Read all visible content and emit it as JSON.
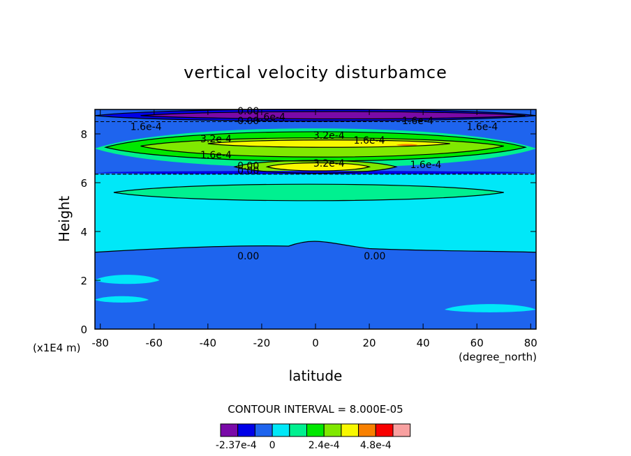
{
  "chart_data": {
    "type": "heatmap",
    "title": "vertical velocity disturbamce",
    "xlabel": "latitude",
    "ylabel": "Height",
    "x_units": "(degree_north)",
    "y_units": "(x1E4 m)",
    "xlim": [
      -82,
      82
    ],
    "ylim": [
      0,
      9
    ],
    "x_ticks": [
      "-80",
      "-60",
      "-40",
      "-20",
      "0",
      "20",
      "40",
      "60",
      "80"
    ],
    "y_ticks": [
      "0",
      "2",
      "4",
      "6",
      "8"
    ],
    "contour_interval_text": "CONTOUR INTERVAL = 8.000E-05",
    "legend": {
      "colors": [
        "#7a0aa8",
        "#0000e8",
        "#1e64ee",
        "#00e8f8",
        "#00f090",
        "#00e800",
        "#80e800",
        "#f8f800",
        "#f88000",
        "#f80000",
        "#f8a0a0"
      ],
      "labels": [
        "-2.37e-4",
        "0",
        "2.4e-4",
        "4.8e-4"
      ]
    },
    "contour_labels": [
      {
        "text": "0.00",
        "x": -25,
        "y": 8.95
      },
      {
        "text": "1.6e-4",
        "x": -17,
        "y": 8.7
      },
      {
        "text": "0.00",
        "x": -25,
        "y": 8.55
      },
      {
        "text": "1.6e-4",
        "x": 38,
        "y": 8.55
      },
      {
        "text": "1.6e-4",
        "x": -63,
        "y": 8.3
      },
      {
        "text": "1.6e-4",
        "x": 62,
        "y": 8.3
      },
      {
        "text": "3.2e-4",
        "x": -37,
        "y": 7.8
      },
      {
        "text": "3.2e-4",
        "x": 5,
        "y": 7.95
      },
      {
        "text": "1.6e-4",
        "x": 20,
        "y": 7.75
      },
      {
        "text": "1.6e-4",
        "x": -37,
        "y": 7.15
      },
      {
        "text": "3.2e-4",
        "x": 5,
        "y": 6.8
      },
      {
        "text": "1.6e-4",
        "x": 41,
        "y": 6.75
      },
      {
        "text": "0.00",
        "x": -25,
        "y": 6.7
      },
      {
        "text": "0.00",
        "x": -25,
        "y": 6.5
      },
      {
        "text": "0.00",
        "x": -25,
        "y": 3.0
      },
      {
        "text": "0.00",
        "x": 22,
        "y": 3.0
      }
    ]
  }
}
